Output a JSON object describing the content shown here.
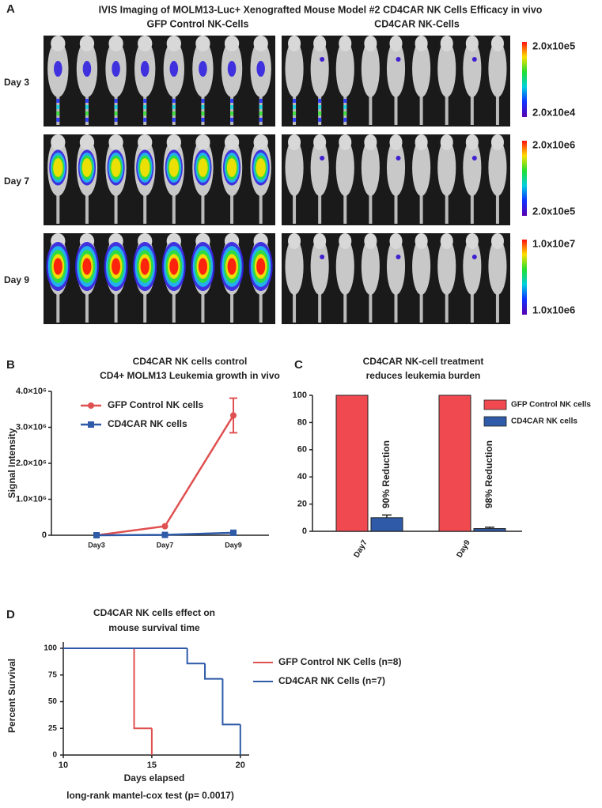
{
  "panel_labels": [
    "A",
    "B",
    "C",
    "D"
  ],
  "imaging": {
    "title": "IVIS Imaging of MOLM13-Luc+ Xenografted Mouse Model #2  CD4CAR NK Cells Efficacy in vivo",
    "groups": [
      "GFP Control NK-Cells",
      "CD4CAR NK-Cells"
    ],
    "days": [
      "Day 3",
      "Day 7",
      "Day 9"
    ],
    "scales": [
      [
        "2.0x10e5",
        "2.0x10e4"
      ],
      [
        "2.0x10e6",
        "2.0x10e5"
      ],
      [
        "1.0x10e7",
        "1.0x10e6"
      ]
    ]
  },
  "chart_data": [
    {
      "type": "line",
      "title": "CD4CAR NK cells control",
      "subtitle": "CD4+ MOLM13 Leukemia growth in vivo",
      "y_label": "Signal Intensity",
      "categories": [
        "Day3",
        "Day7",
        "Day9"
      ],
      "ylim": [
        0,
        4000000
      ],
      "yticks": [
        0,
        {
          "value": 1000000,
          "label": "1.0×10⁶"
        },
        {
          "value": 2000000,
          "label": "2.0×10⁶"
        },
        {
          "value": 3000000,
          "label": "3.0×10⁶"
        },
        {
          "value": 4000000,
          "label": "4.0×10⁶"
        }
      ],
      "series": [
        {
          "name": "GFP Control NK cells",
          "color": "#e05050",
          "values": [
            0,
            250000,
            3330000
          ],
          "errors": [
            null,
            null,
            480000
          ]
        },
        {
          "name": "CD4CAR NK cells",
          "color": "#2e5aa8",
          "values": [
            0,
            10000,
            70000
          ]
        }
      ]
    },
    {
      "type": "bar",
      "title": "CD4CAR NK-cell treatment",
      "subtitle": "reduces leukemia burden",
      "categories": [
        "Day7",
        "Day9"
      ],
      "ylim": [
        0,
        100
      ],
      "yticks": [
        0,
        20,
        40,
        60,
        80,
        100
      ],
      "series": [
        {
          "name": "GFP Control NK cells",
          "color": "#f04a50",
          "values": [
            100,
            100
          ]
        },
        {
          "name": "CD4CAR NK cells",
          "color": "#2e5aa8",
          "values": [
            10,
            2
          ],
          "errors": [
            2,
            1
          ]
        }
      ],
      "annotations": [
        "90% Reduction",
        "98% Reduction"
      ]
    },
    {
      "type": "survival",
      "title": "CD4CAR NK cells effect on",
      "subtitle": "mouse survival time",
      "x_label": "Days elapsed",
      "y_label": "Percent Survival",
      "note": "long-rank mantel-cox test (p= 0.0017)",
      "xlim": [
        10,
        20.5
      ],
      "xticks": [
        10,
        15,
        20
      ],
      "ylim": [
        0,
        100
      ],
      "yticks": [
        0,
        25,
        50,
        75,
        100
      ],
      "series": [
        {
          "name": "GFP Control NK Cells (n=8)",
          "color": "#e05050",
          "x": [
            10,
            14,
            15
          ],
          "values": [
            100,
            25,
            0
          ]
        },
        {
          "name": "CD4CAR NK Cells (n=7)",
          "color": "#2e5aa8",
          "x": [
            10,
            17,
            18,
            19,
            20
          ],
          "values": [
            100,
            85.7,
            71.4,
            28.6,
            0
          ]
        }
      ]
    }
  ]
}
